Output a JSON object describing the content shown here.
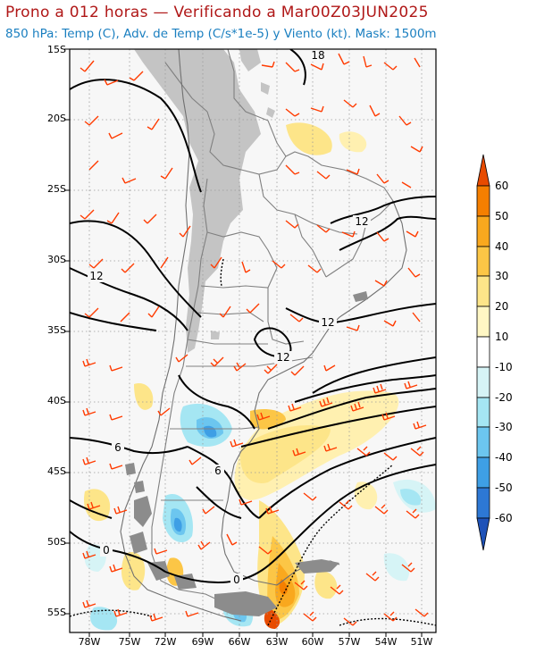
{
  "header": {
    "title": "Prono a 012 horas — Verificando a Mar00Z03JUN2025",
    "subtitle": "850 hPa: Temp (C), Adv. de Temp (C/s*1e-5) y Viento (kt). Mask: 1500m"
  },
  "map": {
    "lat_labels": [
      "15S",
      "20S",
      "25S",
      "30S",
      "35S",
      "40S",
      "45S",
      "50S",
      "55S"
    ],
    "lon_labels": [
      "78W",
      "75W",
      "72W",
      "69W",
      "66W",
      "63W",
      "60W",
      "57W",
      "54W",
      "51W"
    ],
    "contour_labels": [
      "18",
      "12",
      "12",
      "12",
      "12",
      "6",
      "6",
      "0",
      "0"
    ]
  },
  "colorbar": {
    "labels": [
      "60",
      "50",
      "40",
      "30",
      "20",
      "10",
      "-10",
      "-20",
      "-30",
      "-40",
      "-50",
      "-60"
    ],
    "colors": [
      "#e84b00",
      "#f57f00",
      "#f9a81e",
      "#fcc646",
      "#fde589",
      "#fff7c4",
      "#ffffff",
      "#d6f4f6",
      "#a5e6f3",
      "#6cc6ef",
      "#3e9fe5",
      "#2d78d4",
      "#1e52b8"
    ]
  },
  "colors": {
    "title": "#b01818",
    "subtitle": "#1a7fc0",
    "wind_barb": "#ff3b00",
    "mask": "#c4c4c4",
    "background": "#f7f7f7"
  }
}
